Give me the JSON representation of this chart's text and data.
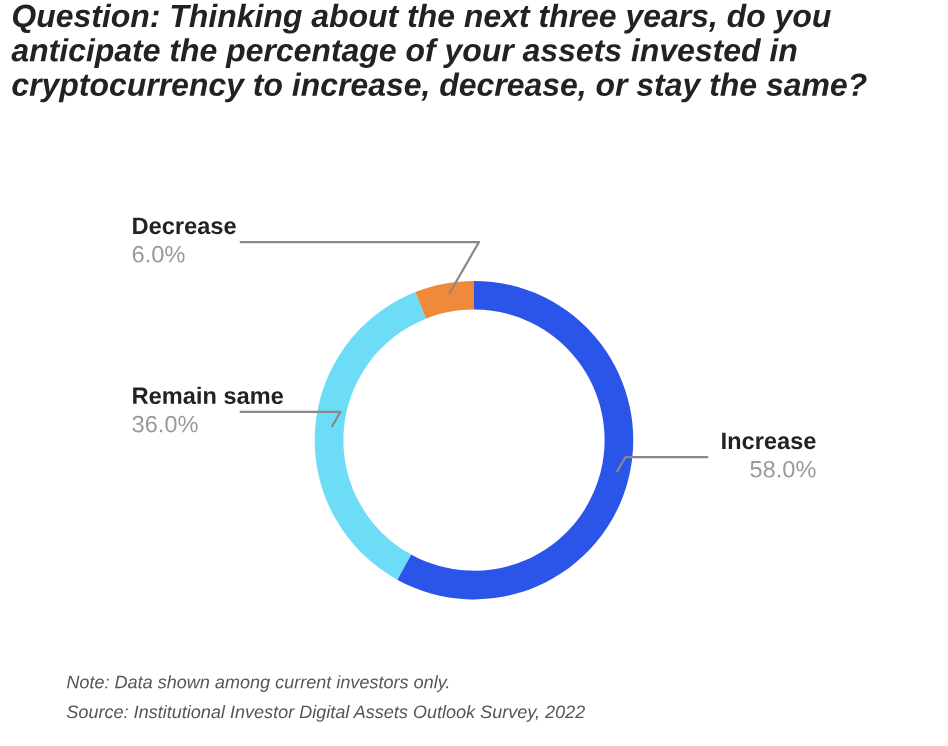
{
  "chart_data": {
    "type": "donut",
    "title": "Question: Thinking about the next three years, do you anticipate the percentage of your assets invested in cryptocurrency to increase, decrease, or stay the same?",
    "categories": [
      "Increase",
      "Remain same",
      "Decrease"
    ],
    "values": [
      58.0,
      36.0,
      6.0
    ],
    "colors": [
      "#2b55e8",
      "#6ddcf7",
      "#ef8a3c"
    ],
    "value_labels": [
      "58.0%",
      "36.0%",
      "6.0%"
    ],
    "legend": false,
    "annotations": [
      "Note: Data shown among current investors only.",
      "Source: Institutional Investor Digital Assets Outlook Survey, 2022"
    ]
  }
}
